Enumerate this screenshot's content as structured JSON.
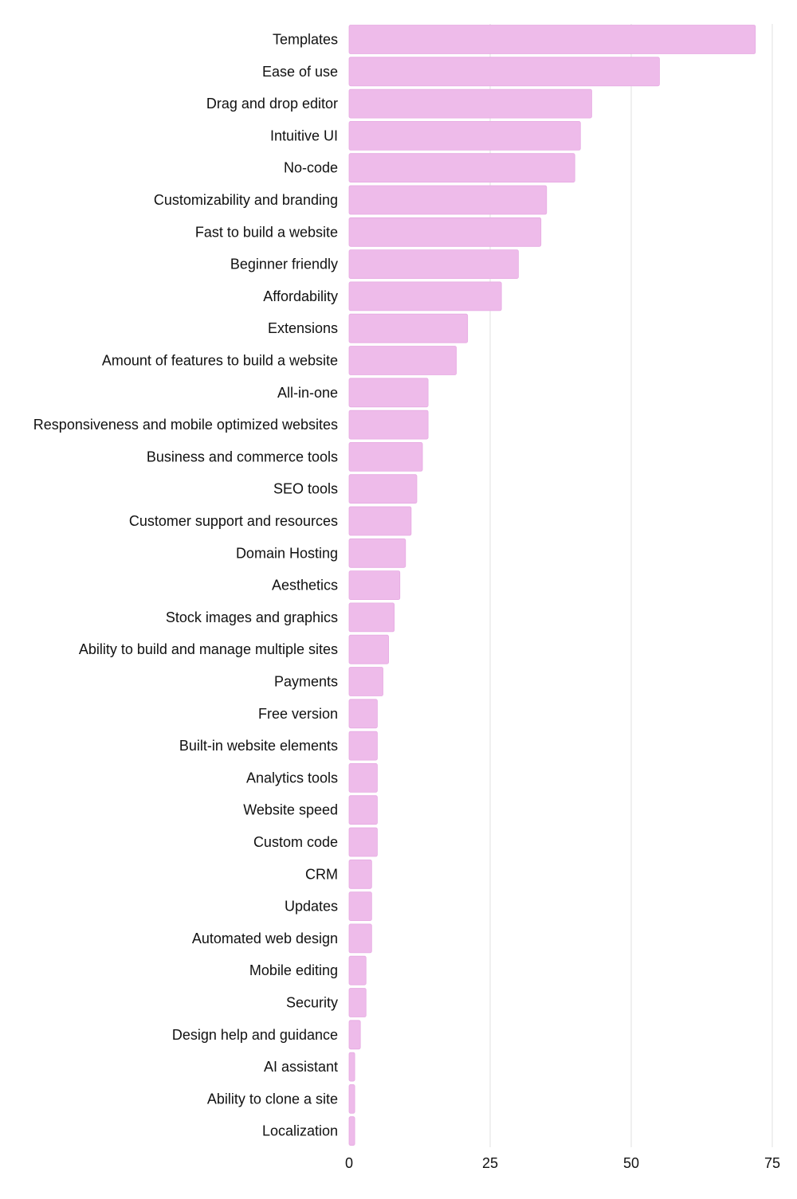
{
  "colors": {
    "bar": "#eebbea",
    "bar_stroke": "#e6a9e2",
    "grid": "#e2e2e2",
    "text": "#111111"
  },
  "chart_data": {
    "type": "bar",
    "orientation": "horizontal",
    "title": "",
    "xlabel": "",
    "ylabel": "",
    "xlim": [
      0,
      75
    ],
    "ticks": [
      0,
      25,
      50,
      75
    ],
    "grid": "vertical",
    "categories": [
      "Templates",
      "Ease of use",
      "Drag and drop editor",
      "Intuitive UI",
      "No-code",
      "Customizability and branding",
      "Fast to build a website",
      "Beginner friendly",
      "Affordability",
      "Extensions",
      "Amount of features to build a website",
      "All-in-one",
      "Responsiveness and mobile optimized websites",
      "Business and commerce tools",
      "SEO tools",
      "Customer support and resources",
      "Domain Hosting",
      "Aesthetics",
      "Stock images and graphics",
      "Ability to build and manage multiple sites",
      "Payments",
      "Free version",
      "Built-in website elements",
      "Analytics tools",
      "Website speed",
      "Custom code",
      "CRM",
      "Updates",
      "Automated web design",
      "Mobile editing",
      "Security",
      "Design help and guidance",
      "AI assistant",
      "Ability to clone a site",
      "Localization"
    ],
    "values": [
      72,
      55,
      43,
      41,
      40,
      35,
      34,
      30,
      27,
      21,
      19,
      14,
      14,
      13,
      12,
      11,
      10,
      9,
      8,
      7,
      6,
      5,
      5,
      5,
      5,
      5,
      4,
      4,
      4,
      3,
      3,
      2,
      1,
      1,
      1
    ]
  }
}
